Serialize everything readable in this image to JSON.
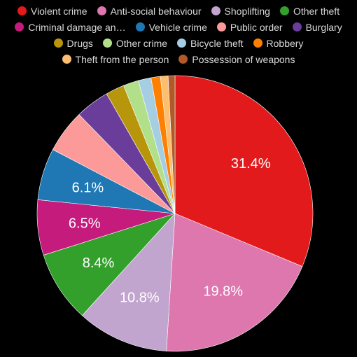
{
  "chart_data": {
    "type": "pie",
    "title": "",
    "legend_position": "top",
    "series": [
      {
        "name": "Violent crime",
        "value": 31.4,
        "label": "31.4%",
        "color": "#e31a1c"
      },
      {
        "name": "Anti-social behaviour",
        "value": 19.8,
        "label": "19.8%",
        "color": "#de77ae"
      },
      {
        "name": "Shoplifting",
        "value": 10.8,
        "label": "10.8%",
        "color": "#c2a5cf"
      },
      {
        "name": "Other theft",
        "value": 8.4,
        "label": "8.4%",
        "color": "#33a02c"
      },
      {
        "name": "Criminal damage an…",
        "value": 6.5,
        "label": "6.5%",
        "color": "#c51b7d"
      },
      {
        "name": "Vehicle crime",
        "value": 6.1,
        "label": "6.1%",
        "color": "#1f78b4"
      },
      {
        "name": "Public order",
        "value": 5.1,
        "label": "",
        "color": "#fb9a99"
      },
      {
        "name": "Burglary",
        "value": 4.0,
        "label": "",
        "color": "#6a3d9a"
      },
      {
        "name": "Drugs",
        "value": 2.2,
        "label": "",
        "color": "#b8960b"
      },
      {
        "name": "Other crime",
        "value": 1.8,
        "label": "",
        "color": "#b2df8a"
      },
      {
        "name": "Bicycle theft",
        "value": 1.5,
        "label": "",
        "color": "#a6cee3"
      },
      {
        "name": "Robbery",
        "value": 1.1,
        "label": "",
        "color": "#ff7f00"
      },
      {
        "name": "Theft from the person",
        "value": 0.9,
        "label": "",
        "color": "#fdbf6f"
      },
      {
        "name": "Possession of weapons",
        "value": 0.8,
        "label": "",
        "color": "#b15928"
      }
    ]
  }
}
